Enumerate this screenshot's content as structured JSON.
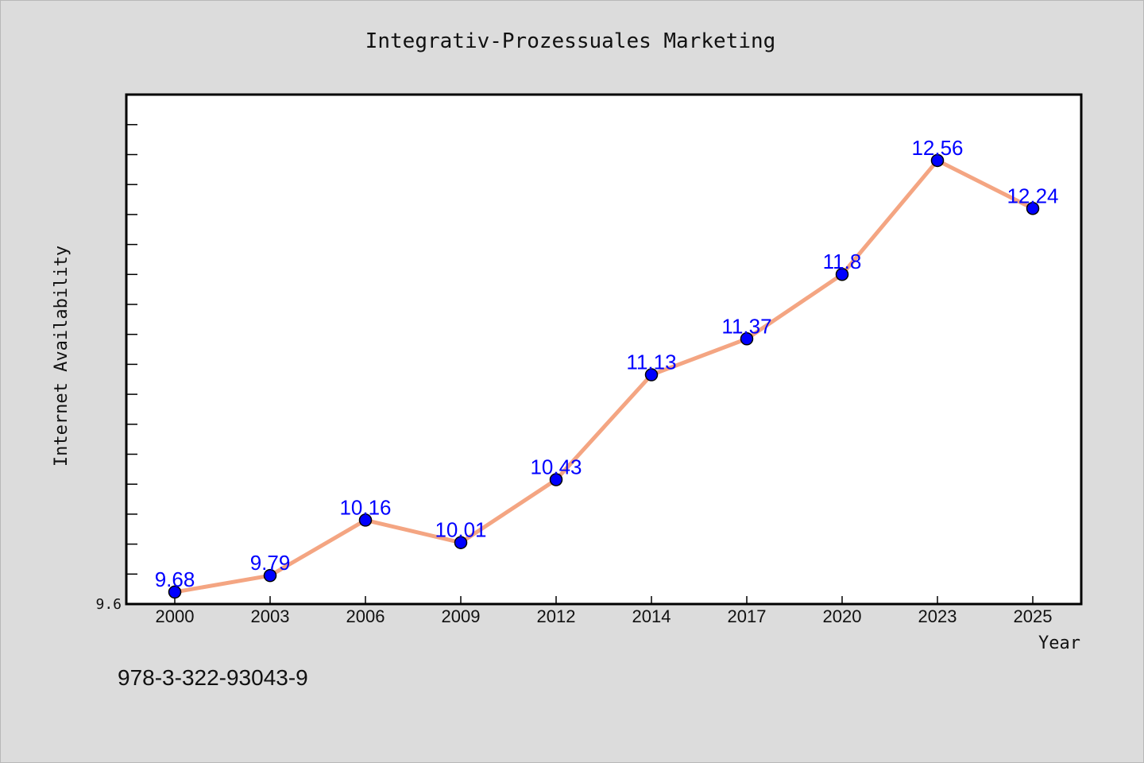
{
  "chart_data": {
    "type": "line",
    "title": "Integrativ-Prozessuales Marketing",
    "xlabel": "Year",
    "ylabel": "Internet Availability",
    "categories": [
      "2000",
      "2003",
      "2006",
      "2009",
      "2012",
      "2014",
      "2017",
      "2020",
      "2023",
      "2025"
    ],
    "series": [
      {
        "values": [
          9.68,
          9.79,
          10.16,
          10.01,
          10.43,
          11.13,
          11.37,
          11.8,
          12.56,
          12.24
        ],
        "labels": [
          "9.68",
          "9.79",
          "10.16",
          "10.01",
          "10.43",
          "11.13",
          "11.37",
          "11.8",
          "12.56",
          "12.24"
        ],
        "line_color": "#f4a582",
        "marker_color": "#0000ff"
      }
    ],
    "ylim": [
      9.6,
      13.0
    ],
    "y_tick_labels": [
      "9.6"
    ],
    "grid": false,
    "legend": "none"
  },
  "footer": {
    "isbn": "978-3-322-93043-9"
  }
}
